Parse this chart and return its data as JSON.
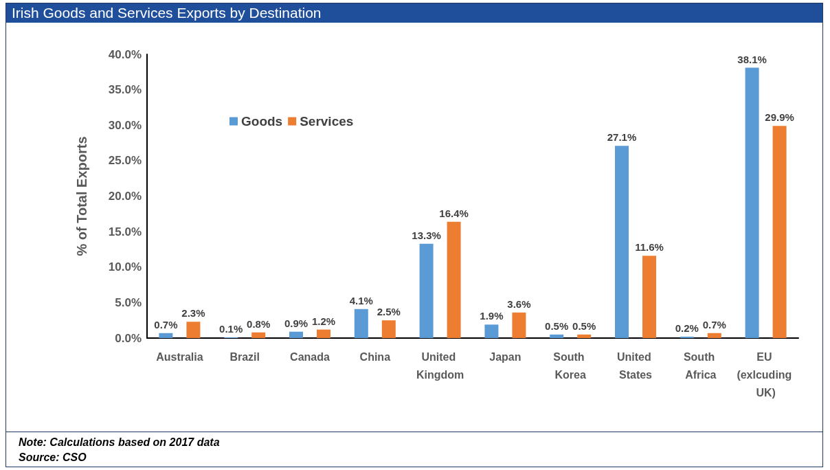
{
  "chart_data": {
    "type": "bar",
    "title": "Irish Goods and Services Exports by Destination",
    "ylabel": "% of Total Exports",
    "categories": [
      "Australia",
      "Brazil",
      "Canada",
      "China",
      "United Kingdom",
      "Japan",
      "South Korea",
      "United States",
      "South Africa",
      "EU (exlcuding UK)"
    ],
    "series": [
      {
        "name": "Goods",
        "color": "#5b9bd5",
        "values": [
          0.7,
          0.1,
          0.9,
          4.1,
          13.3,
          1.9,
          0.5,
          27.1,
          0.2,
          38.1
        ],
        "value_labels": [
          "0.7%",
          "0.1%",
          "0.9%",
          "4.1%",
          "13.3%",
          "1.9%",
          "0.5%",
          "27.1%",
          "0.2%",
          "38.1%"
        ]
      },
      {
        "name": "Services",
        "color": "#ed7d31",
        "values": [
          2.3,
          0.8,
          1.2,
          2.5,
          16.4,
          3.6,
          0.5,
          11.6,
          0.7,
          29.9
        ],
        "value_labels": [
          "2.3%",
          "0.8%",
          "1.2%",
          "2.5%",
          "16.4%",
          "3.6%",
          "0.5%",
          "11.6%",
          "0.7%",
          "29.9%"
        ]
      }
    ],
    "ylim": [
      0,
      40
    ],
    "yticks": [
      {
        "value": 0,
        "label": "0.0%"
      },
      {
        "value": 5,
        "label": "5.0%"
      },
      {
        "value": 10,
        "label": "10.0%"
      },
      {
        "value": 15,
        "label": "15.0%"
      },
      {
        "value": 20,
        "label": "20.0%"
      },
      {
        "value": 25,
        "label": "25.0%"
      },
      {
        "value": 30,
        "label": "30.0%"
      },
      {
        "value": 35,
        "label": "35.0%"
      },
      {
        "value": 40,
        "label": "40.0%"
      }
    ],
    "grid": false,
    "legend": "top left",
    "annotations": [
      "Note: Calculations based on 2017 data",
      "Source: CSO"
    ]
  }
}
